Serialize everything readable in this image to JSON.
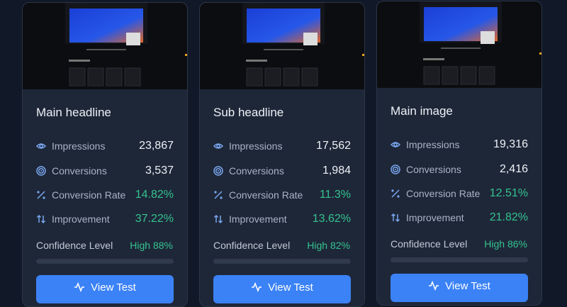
{
  "cards": [
    {
      "title": "Main headline",
      "metrics": [
        {
          "label": "Impressions",
          "value": "23,867"
        },
        {
          "label": "Conversions",
          "value": "3,537"
        },
        {
          "label": "Conversion Rate",
          "value": "14.82%"
        },
        {
          "label": "Improvement",
          "value": "37.22%"
        }
      ],
      "confidence_label": "Confidence Level",
      "confidence": "High 88%",
      "button": "View Test"
    },
    {
      "title": "Sub headline",
      "metrics": [
        {
          "label": "Impressions",
          "value": "17,562"
        },
        {
          "label": "Conversions",
          "value": "1,984"
        },
        {
          "label": "Conversion Rate",
          "value": "11.3%"
        },
        {
          "label": "Improvement",
          "value": "13.62%"
        }
      ],
      "confidence_label": "Confidence Level",
      "confidence": "High 82%",
      "button": "View Test"
    },
    {
      "title": "Main image",
      "metrics": [
        {
          "label": "Impressions",
          "value": "19,316"
        },
        {
          "label": "Conversions",
          "value": "2,416"
        },
        {
          "label": "Conversion Rate",
          "value": "12.51%"
        },
        {
          "label": "Improvement",
          "value": "21.82%"
        }
      ],
      "confidence_label": "Confidence Level",
      "confidence": "High 86%",
      "button": "View Test"
    }
  ]
}
